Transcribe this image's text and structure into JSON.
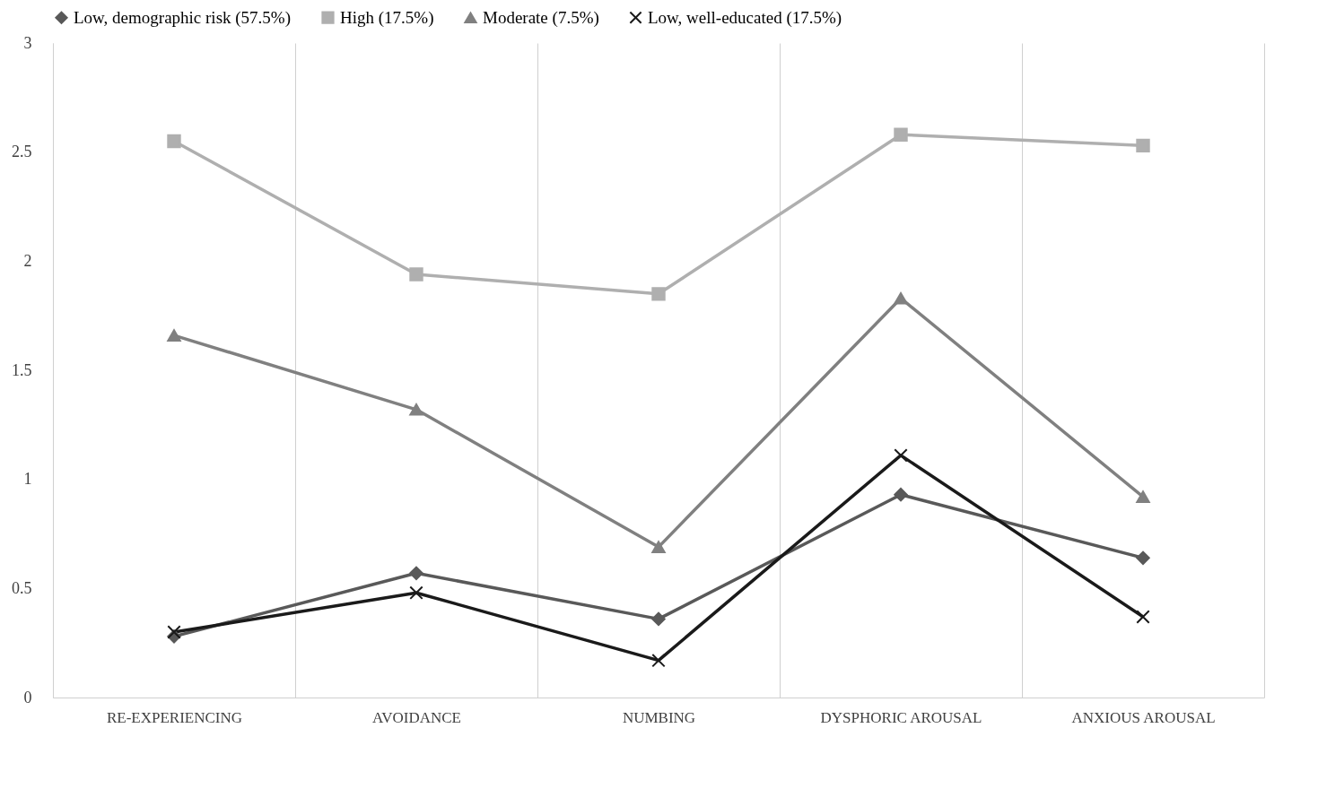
{
  "chart_data": {
    "type": "line",
    "categories": [
      "RE-EXPERIENCING",
      "AVOIDANCE",
      "NUMBING",
      "DYSPHORIC AROUSAL",
      "ANXIOUS AROUSAL"
    ],
    "series": [
      {
        "name": "Low, demographic risk (57.5%)",
        "color": "#595959",
        "marker": "diamond",
        "values": [
          0.28,
          0.57,
          0.36,
          0.93,
          0.64
        ]
      },
      {
        "name": "High (17.5%)",
        "color": "#afafaf",
        "marker": "square",
        "values": [
          2.55,
          1.94,
          1.85,
          2.58,
          2.53
        ]
      },
      {
        "name": "Moderate (7.5%)",
        "color": "#808080",
        "marker": "triangle",
        "values": [
          1.66,
          1.32,
          0.69,
          1.83,
          0.92
        ]
      },
      {
        "name": "Low, well-educated (17.5%)",
        "color": "#1a1a1a",
        "marker": "cross",
        "values": [
          0.3,
          0.48,
          0.17,
          1.11,
          0.37
        ]
      }
    ],
    "ylim": [
      0,
      3
    ],
    "yticks": [
      0,
      0.5,
      1,
      1.5,
      2,
      2.5,
      3
    ],
    "grid": "x",
    "legend": "top",
    "line_style": "solid"
  }
}
